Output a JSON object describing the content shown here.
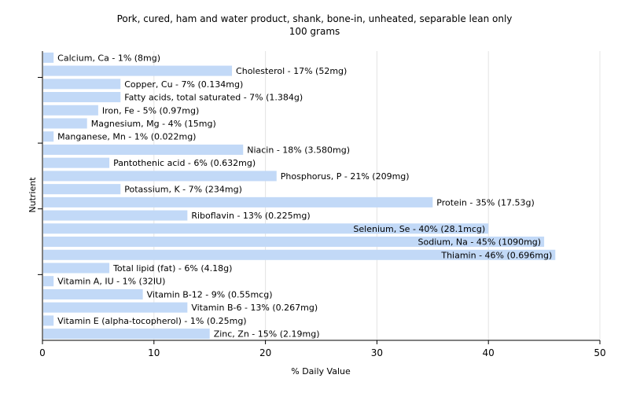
{
  "chart_data": {
    "type": "bar",
    "orientation": "horizontal",
    "title": "Pork, cured, ham and water product, shank, bone-in, unheated, separable lean only",
    "subtitle": "100 grams",
    "xlabel": "% Daily Value",
    "ylabel": "Nutrient",
    "xlim": [
      0,
      50
    ],
    "xticks": [
      0,
      10,
      20,
      30,
      40,
      50
    ],
    "grid": true,
    "bar_color": "#c2d9f7",
    "categories": [
      "Calcium, Ca",
      "Cholesterol",
      "Copper, Cu",
      "Fatty acids, total saturated",
      "Iron, Fe",
      "Magnesium, Mg",
      "Manganese, Mn",
      "Niacin",
      "Pantothenic acid",
      "Phosphorus, P",
      "Potassium, K",
      "Protein",
      "Riboflavin",
      "Selenium, Se",
      "Sodium, Na",
      "Thiamin",
      "Total lipid (fat)",
      "Vitamin A, IU",
      "Vitamin B-12",
      "Vitamin B-6",
      "Vitamin E (alpha-tocopherol)",
      "Zinc, Zn"
    ],
    "values": [
      1,
      17,
      7,
      7,
      5,
      4,
      1,
      18,
      6,
      21,
      7,
      35,
      13,
      40,
      45,
      46,
      6,
      1,
      9,
      13,
      1,
      15
    ],
    "labels": [
      "Calcium, Ca - 1% (8mg)",
      "Cholesterol - 17% (52mg)",
      "Copper, Cu - 7% (0.134mg)",
      "Fatty acids, total saturated - 7% (1.384g)",
      "Iron, Fe - 5% (0.97mg)",
      "Magnesium, Mg - 4% (15mg)",
      "Manganese, Mn - 1% (0.022mg)",
      "Niacin - 18% (3.580mg)",
      "Pantothenic acid - 6% (0.632mg)",
      "Phosphorus, P - 21% (209mg)",
      "Potassium, K - 7% (234mg)",
      "Protein - 35% (17.53g)",
      "Riboflavin - 13% (0.225mg)",
      "Selenium, Se - 40% (28.1mcg)",
      "Sodium, Na - 45% (1090mg)",
      "Thiamin - 46% (0.696mg)",
      "Total lipid (fat) - 6% (4.18g)",
      "Vitamin A, IU - 1% (32IU)",
      "Vitamin B-12 - 9% (0.55mcg)",
      "Vitamin B-6 - 13% (0.267mg)",
      "Vitamin E (alpha-tocopherol) - 1% (0.25mg)",
      "Zinc, Zn - 15% (2.19mg)"
    ]
  }
}
